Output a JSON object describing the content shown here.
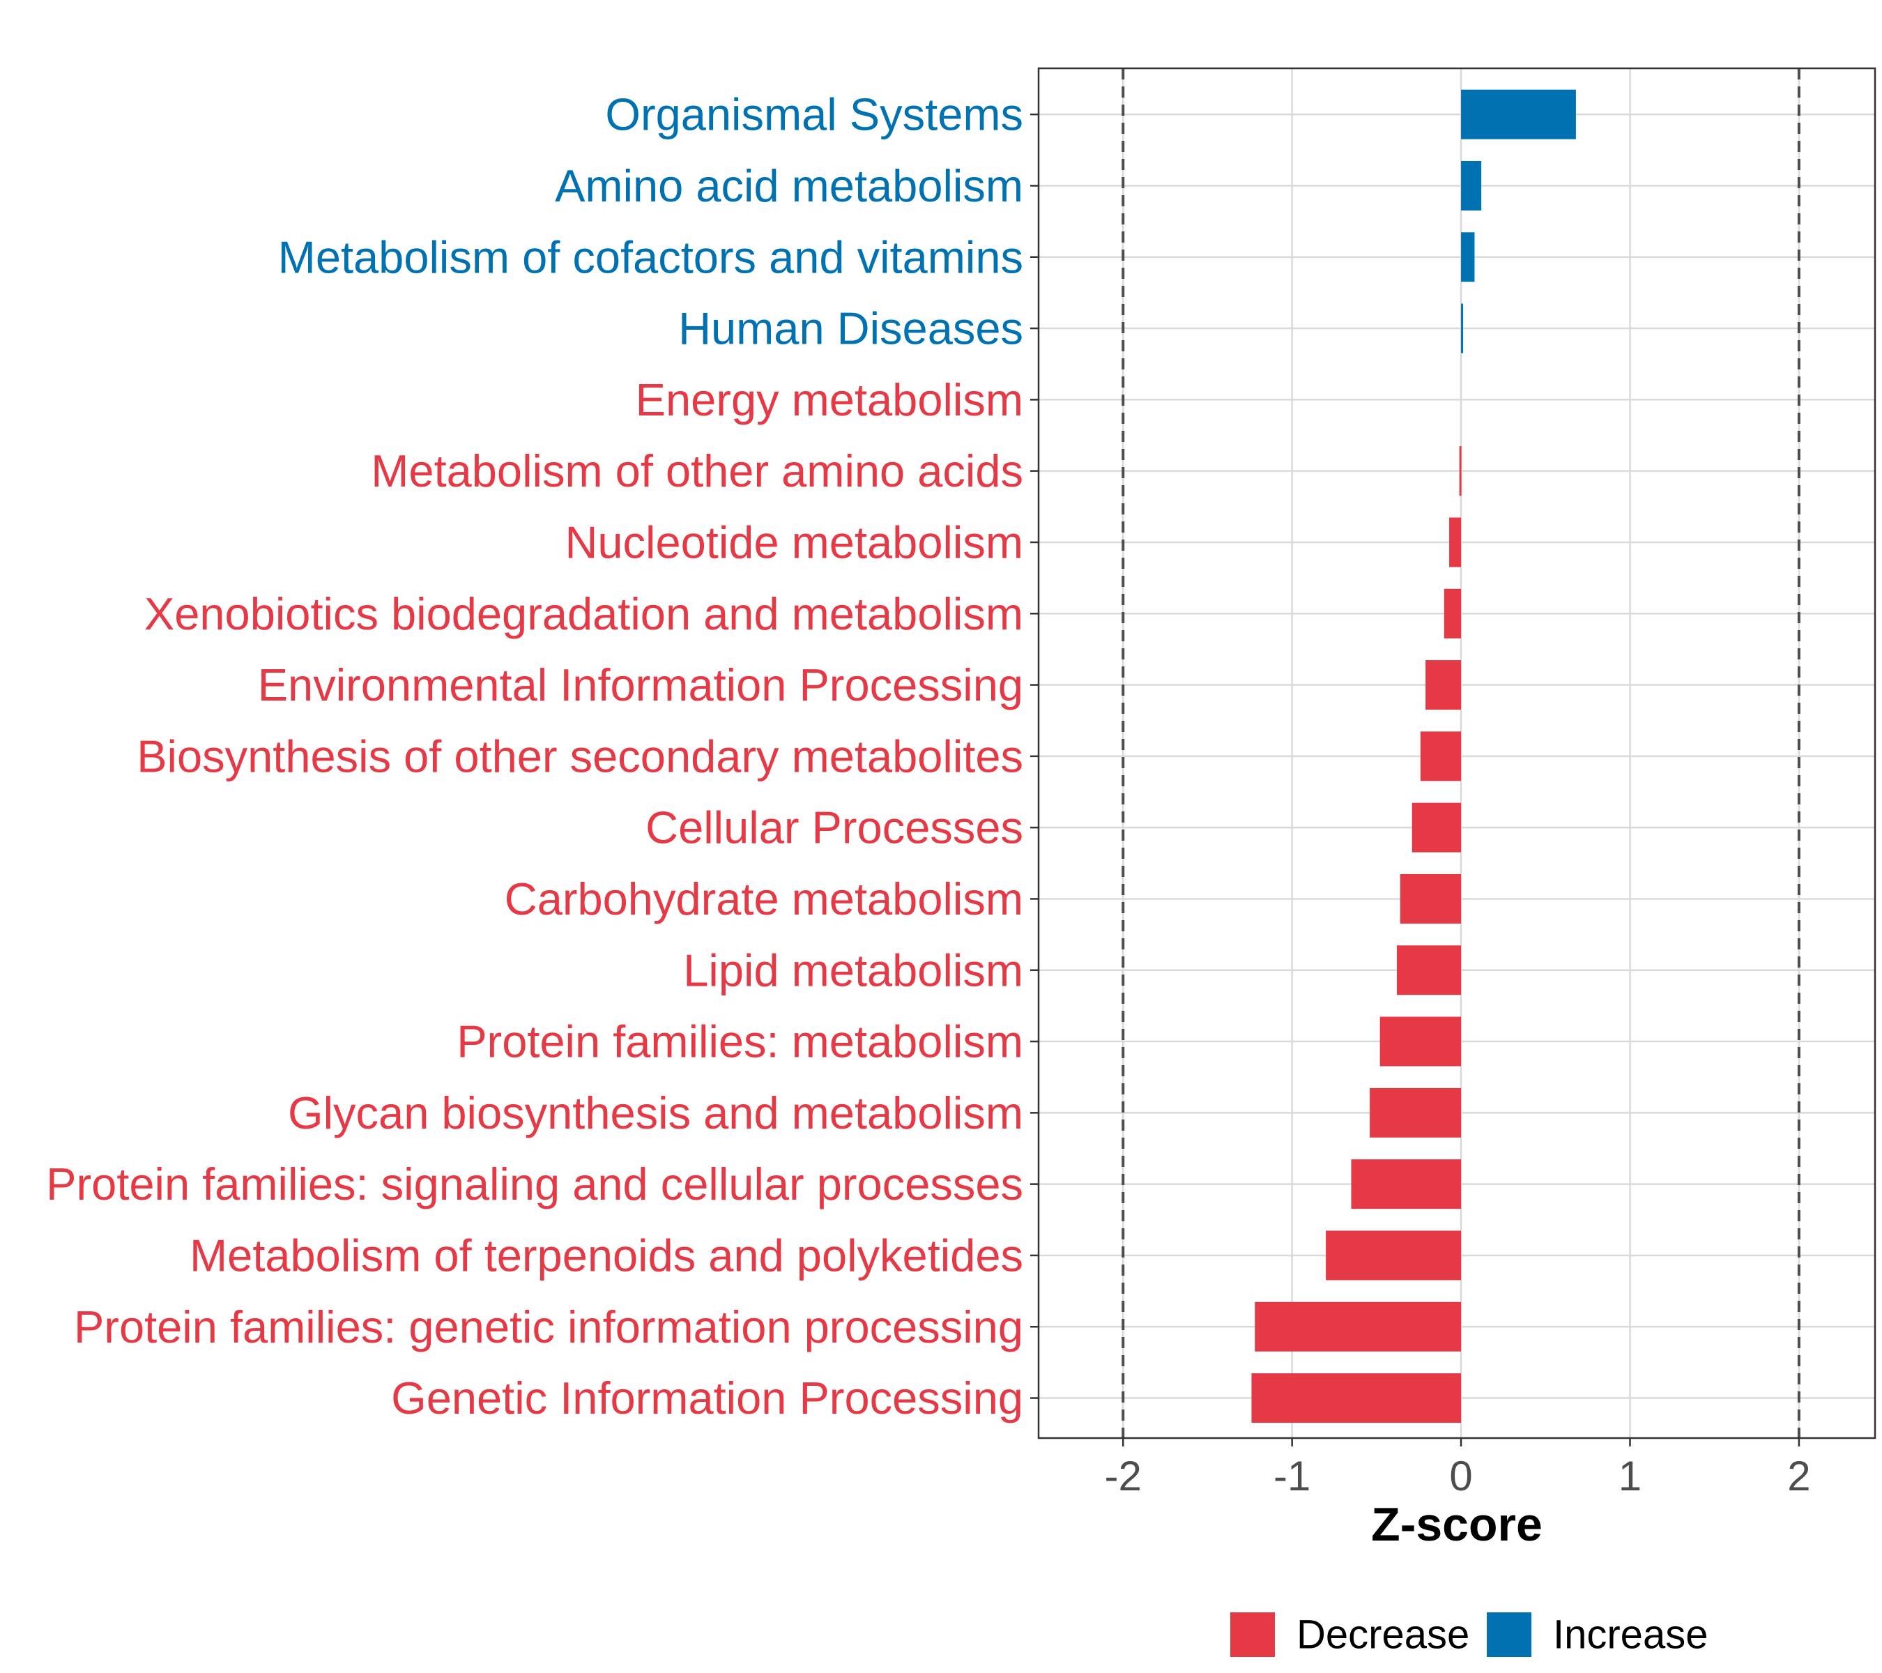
{
  "chart_data": {
    "type": "bar",
    "orientation": "horizontal",
    "title": "",
    "xlabel": "Z-score",
    "ylabel": "",
    "xlim": [
      -2.5,
      2.45
    ],
    "x_ticks": [
      -2,
      -1,
      0,
      1,
      2
    ],
    "x_tick_labels": [
      "-2",
      "-1",
      "0",
      "1",
      "2"
    ],
    "reference_lines": [
      -2,
      2
    ],
    "grid": true,
    "colors": {
      "Decrease": "#e63946",
      "Increase": "#0072b2"
    },
    "categories": [
      "Organismal Systems",
      "Amino acid metabolism",
      "Metabolism of cofactors and vitamins",
      "Human Diseases",
      "Energy metabolism",
      "Metabolism of other amino acids",
      "Nucleotide metabolism",
      "Xenobiotics biodegradation and metabolism",
      "Environmental Information Processing",
      "Biosynthesis of other secondary metabolites",
      "Cellular Processes",
      "Carbohydrate metabolism",
      "Lipid metabolism",
      "Protein families: metabolism",
      "Glycan biosynthesis and metabolism",
      "Protein families: signaling and cellular processes",
      "Metabolism of terpenoids and polyketides",
      "Protein families: genetic information processing",
      "Genetic Information Processing"
    ],
    "values": [
      0.68,
      0.12,
      0.08,
      0.01,
      0.0,
      -0.01,
      -0.07,
      -0.1,
      -0.21,
      -0.24,
      -0.29,
      -0.36,
      -0.38,
      -0.48,
      -0.54,
      -0.65,
      -0.8,
      -1.22,
      -1.24
    ],
    "groups": [
      "Increase",
      "Increase",
      "Increase",
      "Increase",
      "Decrease",
      "Decrease",
      "Decrease",
      "Decrease",
      "Decrease",
      "Decrease",
      "Decrease",
      "Decrease",
      "Decrease",
      "Decrease",
      "Decrease",
      "Decrease",
      "Decrease",
      "Decrease",
      "Decrease"
    ],
    "legend": {
      "position": "bottom",
      "entries": [
        {
          "label": "Decrease",
          "color": "#e63946"
        },
        {
          "label": "Increase",
          "color": "#0072b2"
        }
      ]
    }
  }
}
